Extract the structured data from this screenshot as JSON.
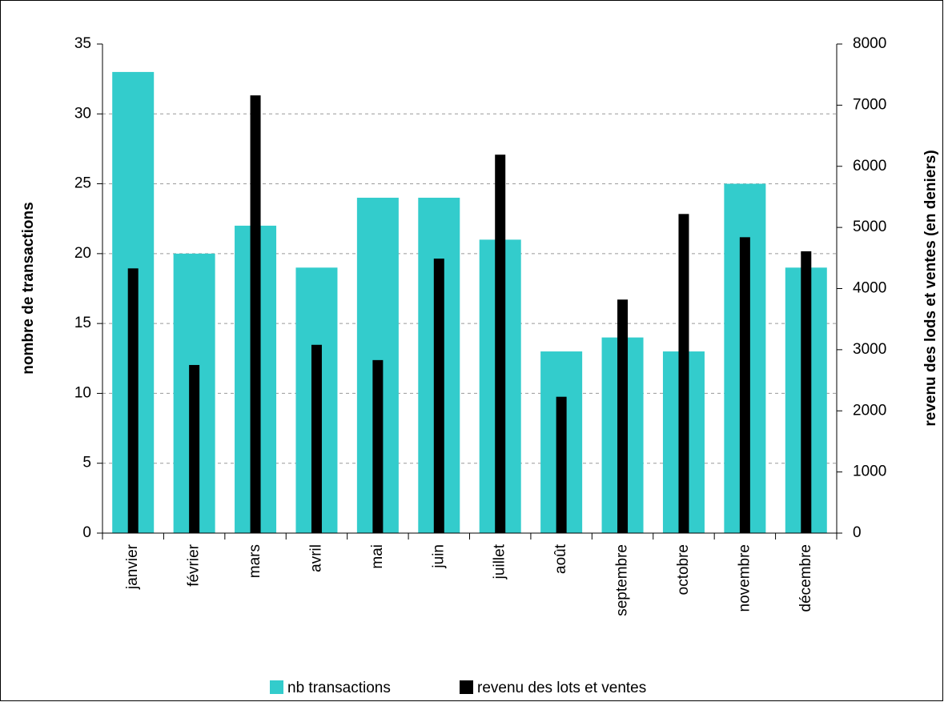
{
  "chart_data": {
    "type": "bar",
    "categories": [
      "janvier",
      "février",
      "mars",
      "avril",
      "mai",
      "juin",
      "juillet",
      "août",
      "septembre",
      "octobre",
      "novembre",
      "décembre"
    ],
    "series": [
      {
        "name": "nb transactions",
        "color": "#33cccc",
        "values": [
          33,
          20,
          22,
          19,
          24,
          24,
          21,
          13,
          14,
          13,
          25,
          19
        ]
      },
      {
        "name": "revenu des lots et ventes",
        "color": "#000000",
        "axis": "y2",
        "values": [
          4330,
          2750,
          7160,
          3080,
          2830,
          4490,
          6190,
          2230,
          3820,
          5220,
          4840,
          4610
        ]
      }
    ],
    "y_label": "nombre de transactions",
    "y2_label": "revenu des lods et ventes (en deniers)",
    "ylim": [
      0,
      35
    ],
    "yticks": [
      0,
      5,
      10,
      15,
      20,
      25,
      30,
      35
    ],
    "y2lim": [
      0,
      8000
    ],
    "y2ticks": [
      0,
      1000,
      2000,
      3000,
      4000,
      5000,
      6000,
      7000,
      8000
    ],
    "grid": true,
    "legend": "bottom"
  }
}
